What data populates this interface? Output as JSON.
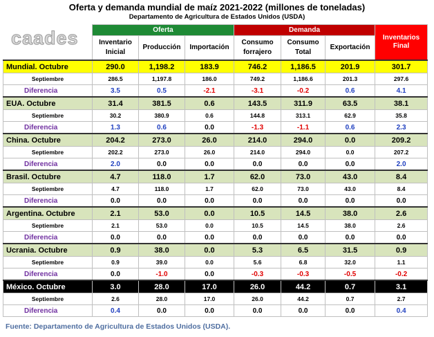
{
  "header": {
    "title": "Oferta y demanda mundial de maíz 2021-2022 (millones de toneladas)",
    "subtitle": "Departamento de Agricultura de Estados Unidos (USDA)",
    "logo": "caades"
  },
  "table": {
    "groups": [
      "Oferta",
      "Demanda",
      "Inventarios Final"
    ],
    "columns": [
      "Inventario Inicial",
      "Producción",
      "Importación",
      "Consumo forrajero",
      "Consumo Total",
      "Exportación"
    ],
    "blocks": [
      {
        "rows": [
          {
            "label": "Mundial. Octubre",
            "values": [
              "290.0",
              "1,198.2",
              "183.9",
              "746.2",
              "1,186.5",
              "201.9",
              "301.7"
            ]
          },
          {
            "label": "Septiembre",
            "values": [
              "286.5",
              "1,197.8",
              "186.0",
              "749.2",
              "1,186.6",
              "201.3",
              "297.6"
            ]
          },
          {
            "label": "Diferencia",
            "values": [
              "3.5",
              "0.5",
              "-2.1",
              "-3.1",
              "-0.2",
              "0.6",
              "4.1"
            ]
          }
        ]
      },
      {
        "rows": [
          {
            "label": "EUA. Octubre",
            "values": [
              "31.4",
              "381.5",
              "0.6",
              "143.5",
              "311.9",
              "63.5",
              "38.1"
            ]
          },
          {
            "label": "Septiembre",
            "values": [
              "30.2",
              "380.9",
              "0.6",
              "144.8",
              "313.1",
              "62.9",
              "35.8"
            ]
          },
          {
            "label": "Diferencia",
            "values": [
              "1.3",
              "0.6",
              "0.0",
              "-1.3",
              "-1.1",
              "0.6",
              "2.3"
            ]
          }
        ]
      },
      {
        "rows": [
          {
            "label": "China. Octubre",
            "values": [
              "204.2",
              "273.0",
              "26.0",
              "214.0",
              "294.0",
              "0.0",
              "209.2"
            ]
          },
          {
            "label": "Septiembre",
            "values": [
              "202.2",
              "273.0",
              "26.0",
              "214.0",
              "294.0",
              "0.0",
              "207.2"
            ]
          },
          {
            "label": "Diferencia",
            "values": [
              "2.0",
              "0.0",
              "0.0",
              "0.0",
              "0.0",
              "0.0",
              "2.0"
            ]
          }
        ]
      },
      {
        "rows": [
          {
            "label": "Brasil. Octubre",
            "values": [
              "4.7",
              "118.0",
              "1.7",
              "62.0",
              "73.0",
              "43.0",
              "8.4"
            ]
          },
          {
            "label": "Septiembre",
            "values": [
              "4.7",
              "118.0",
              "1.7",
              "62.0",
              "73.0",
              "43.0",
              "8.4"
            ]
          },
          {
            "label": "Diferencia",
            "values": [
              "0.0",
              "0.0",
              "0.0",
              "0.0",
              "0.0",
              "0.0",
              "0.0"
            ]
          }
        ]
      },
      {
        "rows": [
          {
            "label": "Argentina. Octubre",
            "values": [
              "2.1",
              "53.0",
              "0.0",
              "10.5",
              "14.5",
              "38.0",
              "2.6"
            ]
          },
          {
            "label": "Septiembre",
            "values": [
              "2.1",
              "53.0",
              "0.0",
              "10.5",
              "14.5",
              "38.0",
              "2.6"
            ]
          },
          {
            "label": "Diferencia",
            "values": [
              "0.0",
              "0.0",
              "0.0",
              "0.0",
              "0.0",
              "0.0",
              "0.0"
            ]
          }
        ]
      },
      {
        "rows": [
          {
            "label": "Ucrania. Octubre",
            "values": [
              "0.9",
              "38.0",
              "0.0",
              "5.3",
              "6.5",
              "31.5",
              "0.9"
            ]
          },
          {
            "label": "Septiembre",
            "values": [
              "0.9",
              "39.0",
              "0.0",
              "5.6",
              "6.8",
              "32.0",
              "1.1"
            ]
          },
          {
            "label": "Diferencia",
            "values": [
              "0.0",
              "-1.0",
              "0.0",
              "-0.3",
              "-0.3",
              "-0.5",
              "-0.2"
            ]
          }
        ]
      },
      {
        "rows": [
          {
            "label": "México. Octubre",
            "values": [
              "3.0",
              "28.0",
              "17.0",
              "26.0",
              "44.2",
              "0.7",
              "3.1"
            ]
          },
          {
            "label": "Septiembre",
            "values": [
              "2.6",
              "28.0",
              "17.0",
              "26.0",
              "44.2",
              "0.7",
              "2.7"
            ]
          },
          {
            "label": "Diferencia",
            "values": [
              "0.4",
              "0.0",
              "0.0",
              "0.0",
              "0.0",
              "0.0",
              "0.4"
            ]
          }
        ]
      }
    ]
  },
  "footer": "Fuente: Departamento de Agricultura de Estados Unidos (USDA)."
}
